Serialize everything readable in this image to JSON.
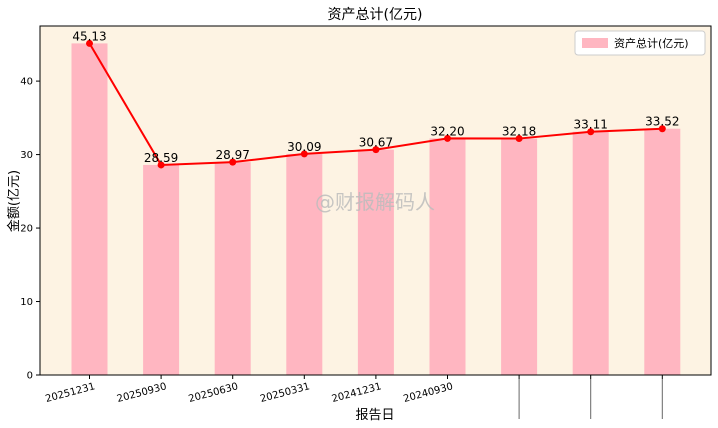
{
  "chart_data": {
    "type": "bar",
    "title": "资产总计(亿元)",
    "xlabel": "报告日",
    "ylabel": "金额(亿元)",
    "categories": [
      "20251231",
      "20250930",
      "20250630",
      "20250331",
      "20241231",
      "20240930",
      "",
      "",
      ""
    ],
    "series": [
      {
        "name": "资产总计(亿元)",
        "values": [
          45.13,
          28.59,
          28.97,
          30.09,
          30.67,
          32.2,
          32.18,
          33.11,
          33.52
        ]
      }
    ],
    "data_labels": [
      "45.13",
      "28.59",
      "28.97",
      "30.09",
      "30.67",
      "32.20",
      "32.18",
      "33.11",
      "33.52"
    ],
    "ylim": [
      0,
      47.5
    ],
    "yticks": [
      0,
      10,
      20,
      30,
      40
    ],
    "legend_position": "top-right",
    "grid": false,
    "watermark": "@财报解码人",
    "colors": {
      "bar": "#ffb6c1",
      "line": "#ff0000",
      "background": "#fdf3e3"
    }
  }
}
